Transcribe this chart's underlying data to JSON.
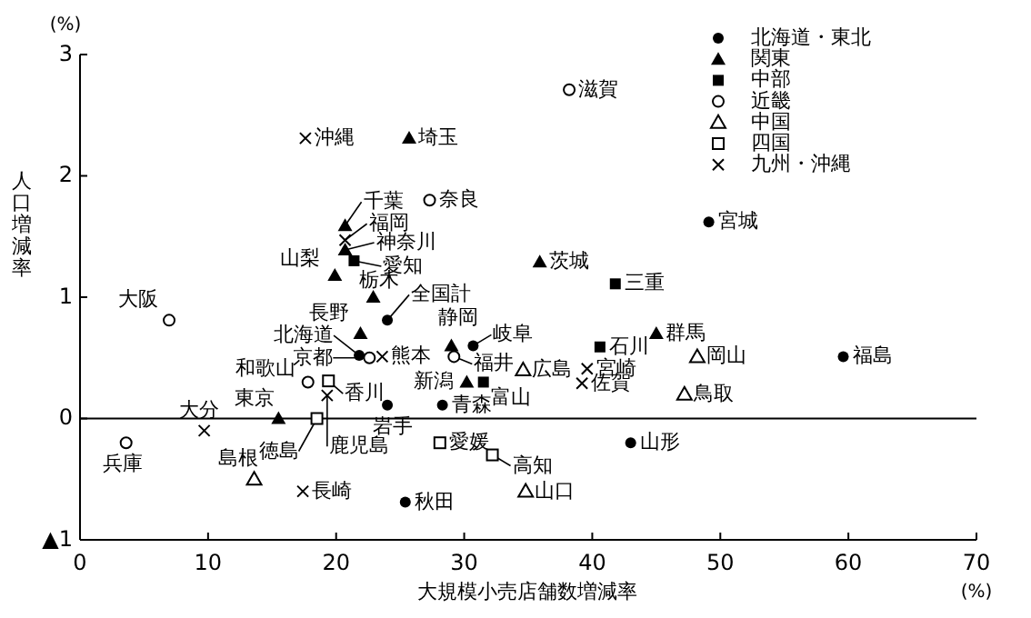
{
  "chart_data": {
    "type": "scatter",
    "xlabel": "大規模小売店舗数増減率",
    "ylabel": "人口増減率",
    "xlim": [
      0,
      70
    ],
    "xticks": [
      0,
      10,
      20,
      30,
      40,
      50,
      60,
      70
    ],
    "ylim": [
      -1,
      3
    ],
    "yticks": [
      {
        "value": -1,
        "label": "▲1"
      },
      0,
      1,
      2,
      3
    ],
    "grid": false,
    "legend": "top right",
    "ref_lines": [
      {
        "axis": "y",
        "value": 0,
        "color": "#000000"
      }
    ],
    "series": [
      {
        "name": "北海道・東北",
        "color": "#000000",
        "marker": "circle",
        "x": [
          49.1,
          59.6,
          43.0,
          25.4,
          24.0,
          28.3,
          21.8,
          30.7,
          24.0
        ],
        "values": [
          1.62,
          0.51,
          -0.2,
          -0.69,
          0.11,
          0.11,
          0.52,
          0.6,
          0.81
        ]
      },
      {
        "name": "関東",
        "color": "#000000",
        "marker": "triangle",
        "x": [
          25.7,
          20.7,
          20.7,
          19.9,
          22.9,
          35.9,
          45.0,
          15.5,
          21.9,
          29.0,
          30.2
        ],
        "values": [
          2.31,
          1.59,
          1.39,
          1.18,
          1.0,
          1.29,
          0.7,
          0.0,
          0.7,
          0.6,
          0.3
        ]
      },
      {
        "name": "中部",
        "color": "#000000",
        "marker": "square",
        "x": [
          21.4,
          41.8,
          40.6,
          31.5
        ],
        "values": [
          1.3,
          1.11,
          0.59,
          0.3
        ]
      },
      {
        "name": "近畿",
        "color": "#000000",
        "marker": "circle open",
        "x": [
          38.2,
          27.3,
          6.96,
          22.6,
          29.2,
          17.8,
          3.6
        ],
        "values": [
          2.71,
          1.8,
          0.81,
          0.5,
          0.51,
          0.3,
          -0.2
        ]
      },
      {
        "name": "中国",
        "color": "#000000",
        "marker": "triangle open",
        "x": [
          34.6,
          48.2,
          47.2,
          34.8,
          13.6
        ],
        "values": [
          0.4,
          0.51,
          0.2,
          -0.6,
          -0.5
        ]
      },
      {
        "name": "四国",
        "color": "#000000",
        "marker": "square open",
        "x": [
          19.4,
          28.1,
          32.2,
          18.5
        ],
        "values": [
          0.31,
          -0.2,
          -0.3,
          0.0
        ]
      },
      {
        "name": "九州・沖縄",
        "color": "#000000",
        "marker": "cross",
        "x": [
          17.6,
          20.7,
          23.6,
          19.3,
          39.6,
          39.2,
          17.4,
          9.7
        ],
        "values": [
          2.31,
          1.47,
          0.51,
          0.19,
          0.41,
          0.29,
          -0.6,
          -0.1
        ]
      }
    ],
    "annotations": [
      "(%)",
      "(%)",
      {
        "text": "滋賀",
        "x": 38.2,
        "y": 2.71
      },
      {
        "text": "沖縄",
        "x": 17.6,
        "y": 2.31
      },
      {
        "text": "埼玉",
        "x": 25.7,
        "y": 2.31
      },
      {
        "text": "奈良",
        "x": 27.3,
        "y": 1.8
      },
      {
        "text": "千葉",
        "x": 20.7,
        "y": 1.59
      },
      {
        "text": "福岡",
        "x": 20.7,
        "y": 1.47
      },
      {
        "text": "神奈川",
        "x": 20.7,
        "y": 1.39
      },
      {
        "text": "愛知",
        "x": 21.4,
        "y": 1.3
      },
      {
        "text": "山梨",
        "x": 19.9,
        "y": 1.18
      },
      {
        "text": "栃木",
        "x": 22.9,
        "y": 1.0
      },
      {
        "text": "全国計",
        "x": 24.0,
        "y": 0.81
      },
      {
        "text": "宮城",
        "x": 49.1,
        "y": 1.62
      },
      {
        "text": "茨城",
        "x": 35.9,
        "y": 1.29
      },
      {
        "text": "三重",
        "x": 41.8,
        "y": 1.11
      },
      {
        "text": "大阪",
        "x": 6.96,
        "y": 0.81
      },
      {
        "text": "長野",
        "x": 21.9,
        "y": 0.7
      },
      {
        "text": "北海道",
        "x": 21.8,
        "y": 0.52
      },
      {
        "text": "京都",
        "x": 22.6,
        "y": 0.5
      },
      {
        "text": "熊本",
        "x": 23.6,
        "y": 0.51
      },
      {
        "text": "静岡",
        "x": 29.0,
        "y": 0.6
      },
      {
        "text": "岐阜",
        "x": 30.7,
        "y": 0.6
      },
      {
        "text": "福井",
        "x": 29.2,
        "y": 0.51
      },
      {
        "text": "和歌山",
        "x": 17.8,
        "y": 0.3
      },
      {
        "text": "香川",
        "x": 19.4,
        "y": 0.31
      },
      {
        "text": "鹿児島",
        "x": 19.3,
        "y": 0.19
      },
      {
        "text": "岩手",
        "x": 24.0,
        "y": 0.11
      },
      {
        "text": "新潟",
        "x": 30.2,
        "y": 0.3
      },
      {
        "text": "富山",
        "x": 31.5,
        "y": 0.3
      },
      {
        "text": "青森",
        "x": 28.3,
        "y": 0.11
      },
      {
        "text": "広島",
        "x": 34.6,
        "y": 0.4
      },
      {
        "text": "石川",
        "x": 40.6,
        "y": 0.59
      },
      {
        "text": "群馬",
        "x": 45.0,
        "y": 0.7
      },
      {
        "text": "岡山",
        "x": 48.2,
        "y": 0.51
      },
      {
        "text": "宮崎",
        "x": 39.6,
        "y": 0.41
      },
      {
        "text": "佐賀",
        "x": 39.2,
        "y": 0.29
      },
      {
        "text": "鳥取",
        "x": 47.2,
        "y": 0.2
      },
      {
        "text": "福島",
        "x": 59.6,
        "y": 0.51
      },
      {
        "text": "山形",
        "x": 43.0,
        "y": -0.2
      },
      {
        "text": "山口",
        "x": 34.8,
        "y": -0.6
      },
      {
        "text": "高知",
        "x": 32.2,
        "y": -0.3
      },
      {
        "text": "愛媛",
        "x": 28.1,
        "y": -0.2
      },
      {
        "text": "秋田",
        "x": 25.4,
        "y": -0.69
      },
      {
        "text": "長崎",
        "x": 17.4,
        "y": -0.6
      },
      {
        "text": "島根",
        "x": 13.6,
        "y": -0.5
      },
      {
        "text": "徳島",
        "x": 18.5,
        "y": 0.0
      },
      {
        "text": "東京",
        "x": 15.5,
        "y": 0.0
      },
      {
        "text": "大分",
        "x": 9.7,
        "y": -0.1
      },
      {
        "text": "兵庫",
        "x": 3.6,
        "y": -0.2
      }
    ]
  }
}
